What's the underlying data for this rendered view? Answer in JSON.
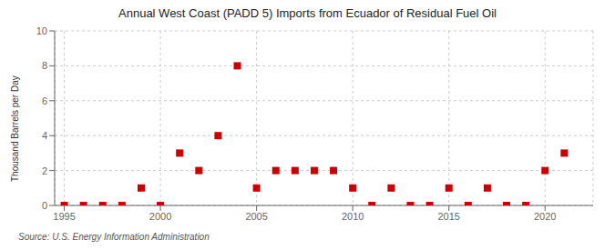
{
  "chart_data": {
    "type": "scatter",
    "title": "Annual West Coast (PADD 5) Imports from Ecuador of Residual Fuel Oil",
    "ylabel": "Thousand Barrels per Day",
    "annotations": [
      "Source: U.S. Energy Information Administration"
    ],
    "x": [
      1995,
      1996,
      1997,
      1998,
      1999,
      2000,
      2001,
      2002,
      2003,
      2004,
      2005,
      2006,
      2007,
      2008,
      2009,
      2010,
      2011,
      2012,
      2013,
      2014,
      2015,
      2016,
      2017,
      2018,
      2019,
      2020,
      2021
    ],
    "values": [
      0,
      0,
      0,
      0,
      1,
      0,
      3,
      2,
      4,
      8,
      1,
      2,
      2,
      2,
      2,
      1,
      0,
      1,
      0,
      0,
      1,
      0,
      1,
      0,
      0,
      2,
      3
    ],
    "color": "#cc0000",
    "marker": "square",
    "xlim": [
      1994.5,
      2022.5
    ],
    "ylim": [
      0,
      10
    ],
    "xticks": [
      1995,
      2000,
      2005,
      2010,
      2015,
      2020
    ],
    "yticks": [
      0,
      2,
      4,
      6,
      8,
      10
    ],
    "grid": true
  }
}
